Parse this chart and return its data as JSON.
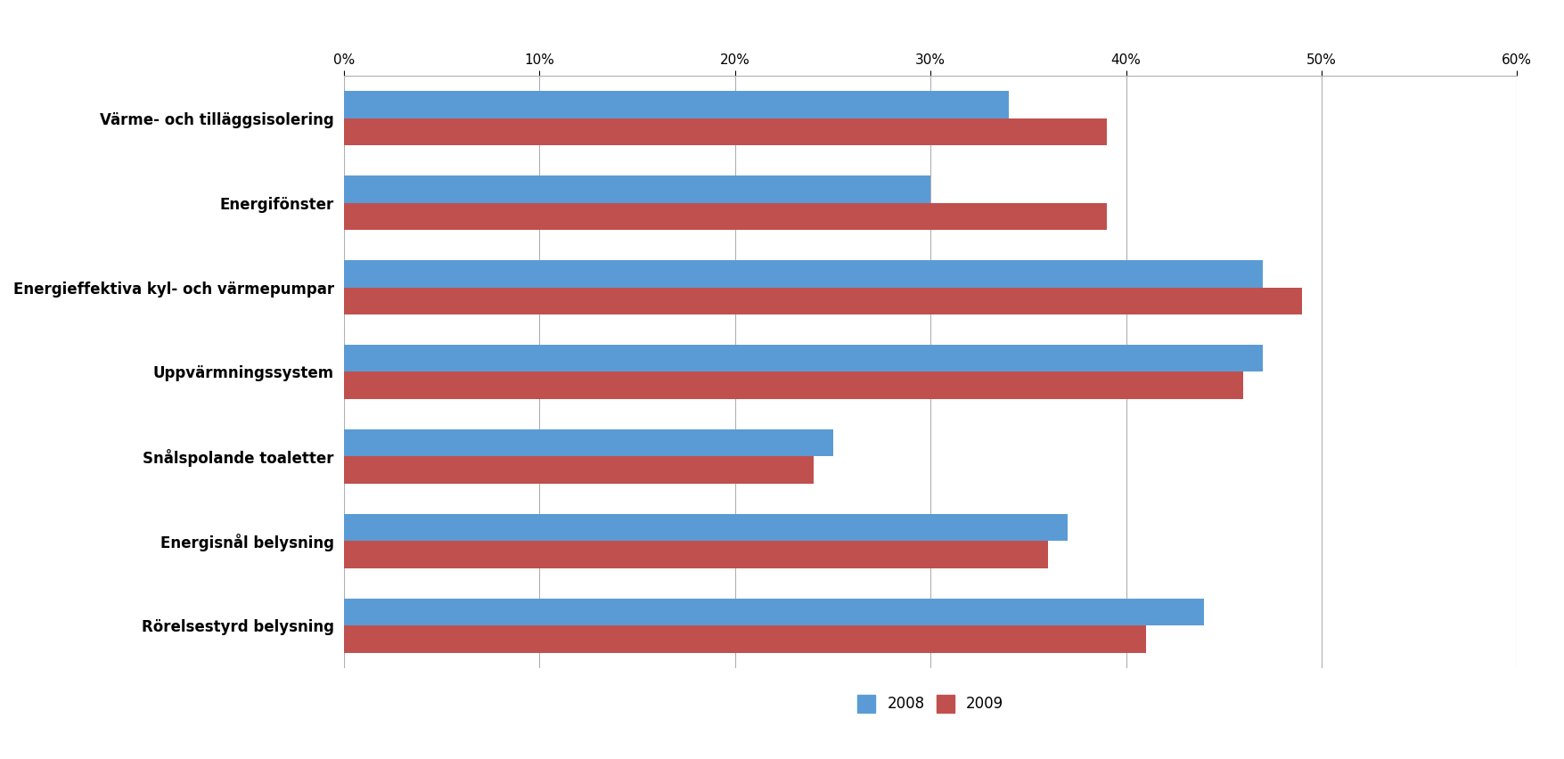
{
  "categories": [
    "Värme- och tilläggsisolering",
    "Energifönster",
    "Energieffektiva kyl- och värmepumpar",
    "Uppvärmningssystem",
    "Snålspolande toaletter",
    "Energisnål belysning",
    "Rörelsestyrd belysning"
  ],
  "values_2008": [
    0.34,
    0.3,
    0.47,
    0.47,
    0.25,
    0.37,
    0.44
  ],
  "values_2009": [
    0.39,
    0.39,
    0.49,
    0.46,
    0.24,
    0.36,
    0.41
  ],
  "color_2008": "#5B9BD5",
  "color_2009": "#C0504D",
  "xlim": [
    0,
    0.6
  ],
  "xticks": [
    0.0,
    0.1,
    0.2,
    0.3,
    0.4,
    0.5,
    0.6
  ],
  "xticklabels": [
    "0%",
    "10%",
    "20%",
    "30%",
    "40%",
    "50%",
    "60%"
  ],
  "legend_labels": [
    "2008",
    "2009"
  ],
  "bar_height": 0.32,
  "background_color": "#ffffff",
  "grid_color": "#b0b0b0",
  "label_fontsize": 12,
  "tick_fontsize": 11,
  "legend_fontsize": 12
}
